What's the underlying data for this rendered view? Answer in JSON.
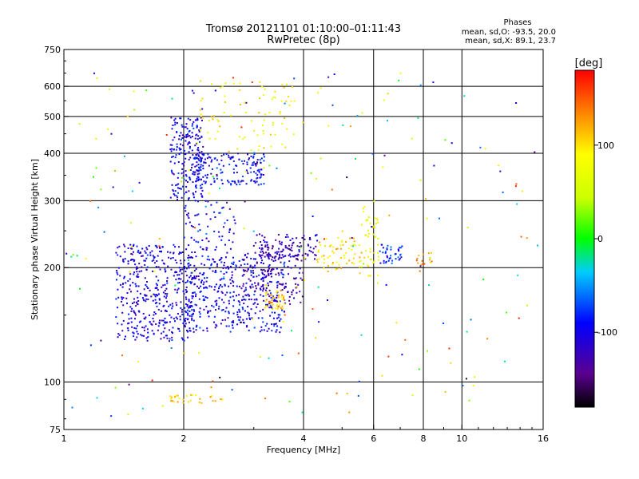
{
  "chart_data": {
    "type": "scatter",
    "title": "Tromsø 20121101 01:10:00–01:11:43",
    "subtitle": "RwPretec (8p)",
    "stats": {
      "heading": "Phases",
      "line_o": "mean, sd,O: -93.5, 20.0",
      "line_x": "mean, sd,X: 89.1, 23.7"
    },
    "xlabel": "Frequency [MHz]",
    "ylabel": "Stationary phase Virtual Height [km]",
    "xscale": "log",
    "yscale": "log",
    "xlim": [
      1,
      16
    ],
    "ylim": [
      75,
      750
    ],
    "xticks": [
      1,
      2,
      4,
      6,
      8,
      10,
      16
    ],
    "yticks": [
      75,
      100,
      200,
      300,
      400,
      500,
      600,
      750
    ],
    "x_gridlines": [
      2,
      4,
      6,
      8,
      10
    ],
    "y_gridlines": [
      100,
      200,
      300,
      400,
      500,
      600
    ],
    "grid": true,
    "colorbar": {
      "label": "[deg]",
      "min": -180,
      "max": 180,
      "ticks": [
        100,
        0,
        -100
      ],
      "colormap": "rainbow"
    },
    "clusters": [
      {
        "fmin": 1.35,
        "fmax": 2.1,
        "hmin": 128,
        "hmax": 230,
        "phase": -105,
        "count": 420
      },
      {
        "fmin": 2.0,
        "fmax": 3.6,
        "hmin": 135,
        "hmax": 215,
        "phase": -100,
        "count": 420
      },
      {
        "fmin": 2.0,
        "fmax": 2.7,
        "hmin": 215,
        "hmax": 300,
        "phase": -100,
        "count": 70
      },
      {
        "fmin": 2.8,
        "fmax": 4.0,
        "hmin": 160,
        "hmax": 230,
        "phase": -130,
        "count": 160
      },
      {
        "fmin": 3.0,
        "fmax": 4.4,
        "hmin": 210,
        "hmax": 245,
        "phase": -120,
        "count": 100
      },
      {
        "fmin": 1.85,
        "fmax": 2.25,
        "hmin": 300,
        "hmax": 500,
        "phase": -100,
        "count": 220
      },
      {
        "fmin": 2.1,
        "fmax": 3.2,
        "hmin": 330,
        "hmax": 400,
        "phase": -95,
        "count": 160
      },
      {
        "fmin": 2.2,
        "fmax": 3.8,
        "hmin": 400,
        "hmax": 620,
        "phase": 90,
        "count": 80
      },
      {
        "fmin": 3.2,
        "fmax": 3.6,
        "hmin": 155,
        "hmax": 175,
        "phase": 110,
        "count": 45
      },
      {
        "fmin": 1.85,
        "fmax": 2.5,
        "hmin": 88,
        "hmax": 93,
        "phase": 105,
        "count": 30
      },
      {
        "fmin": 4.3,
        "fmax": 5.6,
        "hmin": 195,
        "hmax": 240,
        "phase": 100,
        "count": 60
      },
      {
        "fmin": 5.5,
        "fmax": 6.2,
        "hmin": 190,
        "hmax": 290,
        "phase": 80,
        "count": 50
      },
      {
        "fmin": 6.2,
        "fmax": 7.1,
        "hmin": 205,
        "hmax": 230,
        "phase": -85,
        "count": 40
      },
      {
        "fmin": 7.6,
        "fmax": 8.4,
        "hmin": 195,
        "hmax": 220,
        "phase": 125,
        "count": 15
      },
      {
        "fmin": 1.0,
        "fmax": 16.0,
        "hmin": 80,
        "hmax": 650,
        "phase": 0,
        "count": 230
      }
    ]
  }
}
